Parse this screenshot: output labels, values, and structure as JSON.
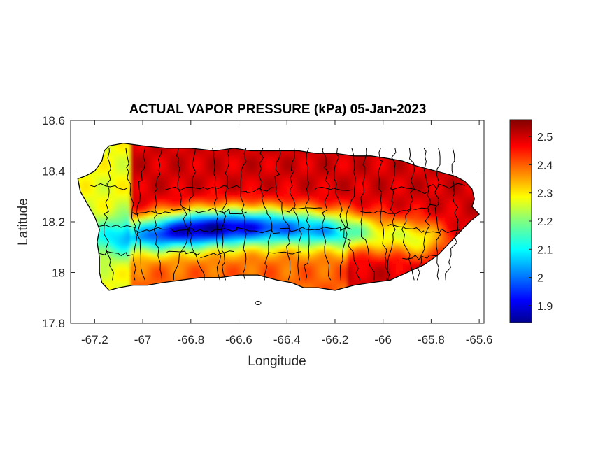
{
  "chart_data": {
    "type": "heatmap",
    "title": "ACTUAL VAPOR PRESSURE (kPa) 05-Jan-2023",
    "xlabel": "Longitude",
    "ylabel": "Latitude",
    "xlim": [
      -67.3,
      -65.58
    ],
    "ylim": [
      17.8,
      18.6
    ],
    "x_ticks": [
      -67.2,
      -67,
      -66.8,
      -66.6,
      -66.4,
      -66.2,
      -66,
      -65.8,
      -65.6
    ],
    "x_tick_labels": [
      "-67.2",
      "-67",
      "-66.8",
      "-66.6",
      "-66.4",
      "-66.2",
      "-66",
      "-65.8",
      "-65.6"
    ],
    "y_ticks": [
      17.8,
      18,
      18.2,
      18.4,
      18.6
    ],
    "y_tick_labels": [
      "17.8",
      "18",
      "18.2",
      "18.4",
      "18.6"
    ],
    "colorbar": {
      "colormap": "jet",
      "range": [
        1.84,
        2.56
      ],
      "ticks": [
        1.9,
        2,
        2.1,
        2.2,
        2.3,
        2.4,
        2.5
      ],
      "tick_labels": [
        "1.9",
        "2",
        "2.1",
        "2.2",
        "2.3",
        "2.4",
        "2.5"
      ]
    },
    "region": "Puerto Rico with municipality boundaries",
    "grid": false,
    "field_summary": {
      "north_coast": 2.5,
      "east_region": 2.5,
      "south_coast": 2.4,
      "west_coast": 2.3,
      "central_mountains_min": 1.87
    }
  },
  "colors": {
    "background": "#ffffff",
    "axes_edge": "#262626",
    "boundary": "#000000"
  }
}
